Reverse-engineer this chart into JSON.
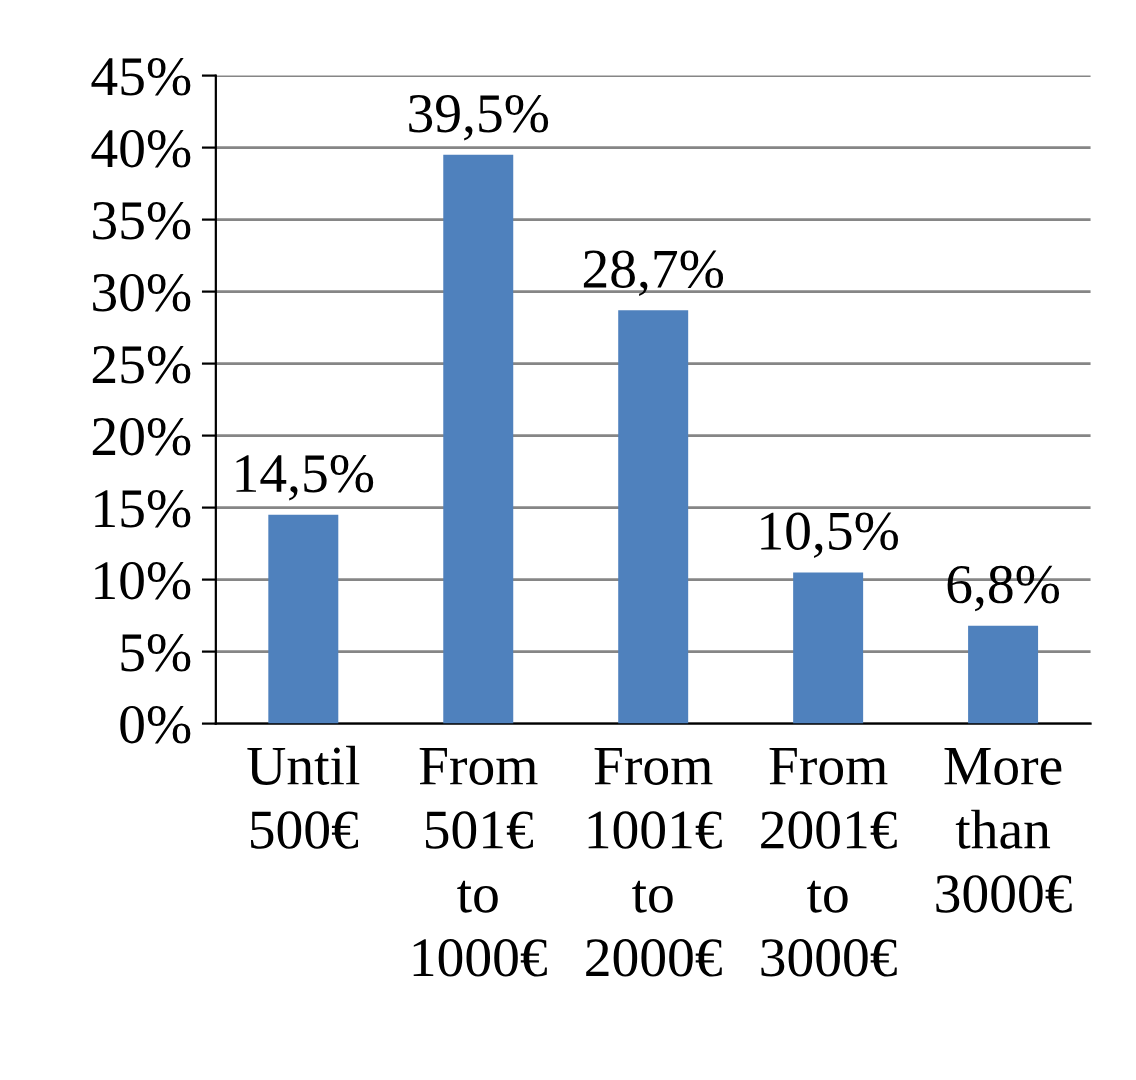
{
  "chart_data": {
    "type": "bar",
    "categories": [
      "Until\n500€",
      "From\n501€\nto\n1000€",
      "From\n1001€\nto\n2000€",
      "From\n2001€\nto\n3000€",
      "More\nthan\n3000€"
    ],
    "values": [
      14.5,
      39.5,
      28.7,
      10.5,
      6.8
    ],
    "value_labels": [
      "14,5%",
      "39,5%",
      "28,7%",
      "10,5%",
      "6,8%"
    ],
    "color": "#4f81bd",
    "ylim": [
      0,
      45
    ],
    "yticks": [
      {
        "value": 0,
        "label": "0%"
      },
      {
        "value": 5,
        "label": "5%"
      },
      {
        "value": 10,
        "label": "10%"
      },
      {
        "value": 15,
        "label": "15%"
      },
      {
        "value": 20,
        "label": "20%"
      },
      {
        "value": 25,
        "label": "25%"
      },
      {
        "value": 30,
        "label": "30%"
      },
      {
        "value": 35,
        "label": "35%"
      },
      {
        "value": 40,
        "label": "40%"
      },
      {
        "value": 45,
        "label": "45%"
      }
    ],
    "grid": "y",
    "legend": false
  }
}
